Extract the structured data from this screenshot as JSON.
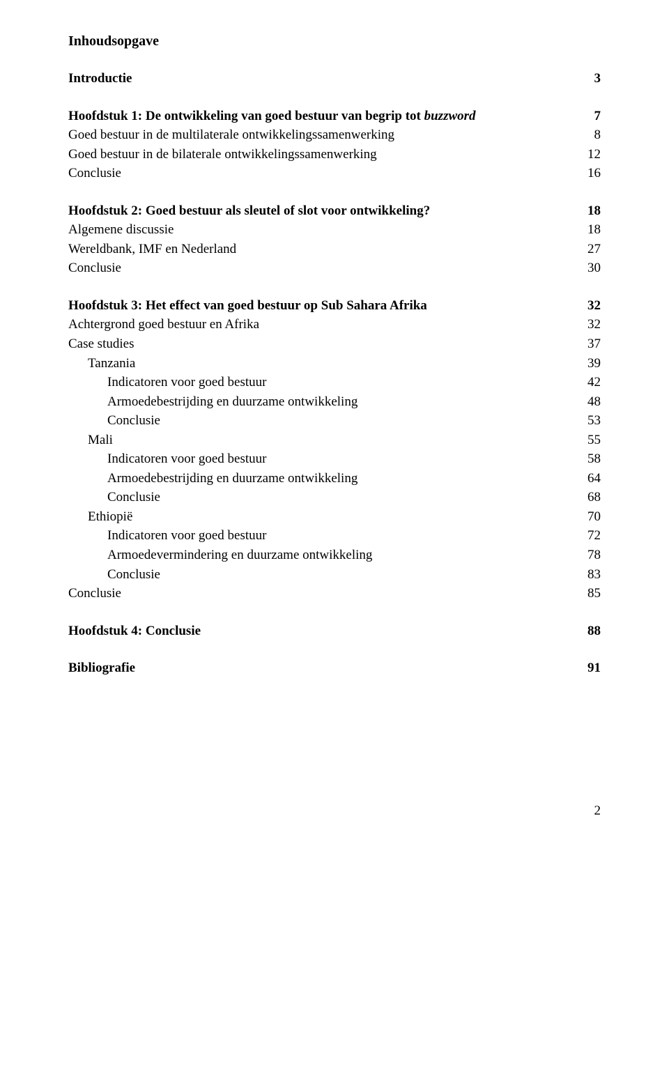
{
  "title": "Inhoudsopgave",
  "page_number": "2",
  "entries": [
    {
      "segments": [
        {
          "t": "Introductie"
        }
      ],
      "page": "3",
      "indent": 0,
      "bold": true,
      "spacer_before": false
    },
    {
      "spacer": true
    },
    {
      "segments": [
        {
          "t": "Hoofdstuk 1: De ontwikkeling van goed bestuur van begrip tot "
        },
        {
          "t": "buzzword",
          "i": true
        }
      ],
      "page": "7",
      "indent": 0,
      "bold": true
    },
    {
      "segments": [
        {
          "t": "Goed bestuur in de multilaterale ontwikkelingssamenwerking"
        }
      ],
      "page": "8",
      "indent": 0,
      "bold": false
    },
    {
      "segments": [
        {
          "t": "Goed bestuur in de bilaterale ontwikkelingssamenwerking"
        }
      ],
      "page": "12",
      "indent": 0,
      "bold": false
    },
    {
      "segments": [
        {
          "t": "Conclusie"
        }
      ],
      "page": "16",
      "indent": 0,
      "bold": false
    },
    {
      "spacer": true
    },
    {
      "segments": [
        {
          "t": "Hoofdstuk 2: Goed bestuur als sleutel of slot voor ontwikkeling?"
        }
      ],
      "page": "18",
      "indent": 0,
      "bold": true
    },
    {
      "segments": [
        {
          "t": "Algemene discussie"
        }
      ],
      "page": "18",
      "indent": 0,
      "bold": false
    },
    {
      "segments": [
        {
          "t": "Wereldbank, IMF en Nederland"
        }
      ],
      "page": "27",
      "indent": 0,
      "bold": false
    },
    {
      "segments": [
        {
          "t": "Conclusie"
        }
      ],
      "page": "30",
      "indent": 0,
      "bold": false
    },
    {
      "spacer": true
    },
    {
      "segments": [
        {
          "t": "Hoofdstuk 3: Het effect van goed bestuur op Sub Sahara Afrika"
        }
      ],
      "page": "32",
      "indent": 0,
      "bold": true
    },
    {
      "segments": [
        {
          "t": "Achtergrond goed bestuur en Afrika"
        }
      ],
      "page": "32",
      "indent": 0,
      "bold": false
    },
    {
      "segments": [
        {
          "t": "Case studies"
        }
      ],
      "page": "37",
      "indent": 0,
      "bold": false
    },
    {
      "segments": [
        {
          "t": "Tanzania"
        }
      ],
      "page": "39",
      "indent": 1,
      "bold": false
    },
    {
      "segments": [
        {
          "t": "Indicatoren voor goed bestuur"
        }
      ],
      "page": "42",
      "indent": 2,
      "bold": false
    },
    {
      "segments": [
        {
          "t": "Armoedebestrijding en duurzame ontwikkeling"
        }
      ],
      "page": "48",
      "indent": 2,
      "bold": false
    },
    {
      "segments": [
        {
          "t": "Conclusie"
        }
      ],
      "page": "53",
      "indent": 2,
      "bold": false
    },
    {
      "segments": [
        {
          "t": "Mali"
        }
      ],
      "page": "55",
      "indent": 1,
      "bold": false
    },
    {
      "segments": [
        {
          "t": "Indicatoren voor goed bestuur"
        }
      ],
      "page": "58",
      "indent": 2,
      "bold": false
    },
    {
      "segments": [
        {
          "t": "Armoedebestrijding en duurzame ontwikkeling"
        }
      ],
      "page": "64",
      "indent": 2,
      "bold": false
    },
    {
      "segments": [
        {
          "t": "Conclusie"
        }
      ],
      "page": "68",
      "indent": 2,
      "bold": false
    },
    {
      "segments": [
        {
          "t": "Ethiopië"
        }
      ],
      "page": "70",
      "indent": 1,
      "bold": false
    },
    {
      "segments": [
        {
          "t": "Indicatoren voor goed bestuur"
        }
      ],
      "page": "72",
      "indent": 2,
      "bold": false
    },
    {
      "segments": [
        {
          "t": "Armoedevermindering en duurzame ontwikkeling"
        }
      ],
      "page": "78",
      "indent": 2,
      "bold": false
    },
    {
      "segments": [
        {
          "t": "Conclusie"
        }
      ],
      "page": "83",
      "indent": 2,
      "bold": false
    },
    {
      "segments": [
        {
          "t": "Conclusie"
        }
      ],
      "page": "85",
      "indent": 0,
      "bold": false
    },
    {
      "spacer": true
    },
    {
      "segments": [
        {
          "t": "Hoofdstuk 4: Conclusie"
        }
      ],
      "page": "88",
      "indent": 0,
      "bold": true
    },
    {
      "spacer": true
    },
    {
      "segments": [
        {
          "t": "Bibliografie"
        }
      ],
      "page": "91",
      "indent": 0,
      "bold": true
    }
  ]
}
